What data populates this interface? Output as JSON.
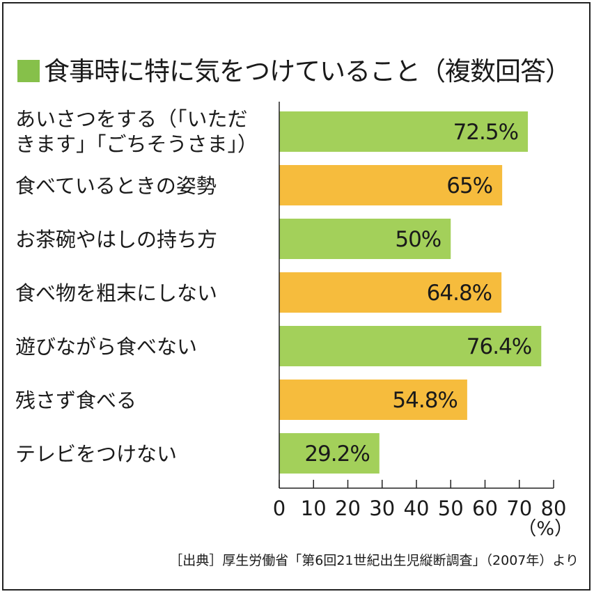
{
  "colors": {
    "green": "#a3d05a",
    "orange": "#f6bc3d",
    "title_square": "#86c04a"
  },
  "title": "食事時に特に気をつけていること（複数回答）",
  "source": "［出典］厚生労働省「第6回21世紀出生児縦断調査」（2007年）より",
  "chart_data": {
    "type": "bar",
    "orientation": "horizontal",
    "title": "食事時に特に気をつけていること（複数回答）",
    "unit": "（%）",
    "xlim": [
      0,
      80
    ],
    "ticks": [
      0,
      10,
      20,
      30,
      40,
      50,
      60,
      70,
      80
    ],
    "categories": [
      [
        "あいさつをする（「いただ",
        "きます」「ごちそうさま」）"
      ],
      [
        "食べているときの姿勢"
      ],
      [
        "お茶碗やはしの持ち方"
      ],
      [
        "食べ物を粗末にしない"
      ],
      [
        "遊びながら食べない"
      ],
      [
        "残さず食べる"
      ],
      [
        "テレビをつけない"
      ]
    ],
    "values": [
      72.5,
      65,
      50,
      64.8,
      76.4,
      54.8,
      29.2
    ],
    "value_labels": [
      "72.5%",
      "65%",
      "50%",
      "64.8%",
      "76.4%",
      "54.8%",
      "29.2%"
    ],
    "bar_colors": [
      "green",
      "orange",
      "green",
      "orange",
      "green",
      "orange",
      "green"
    ]
  }
}
